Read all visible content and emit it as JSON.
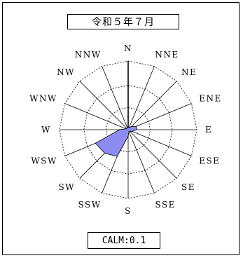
{
  "title": "令和５年７月",
  "calm_text": "CALM:0.1",
  "chart_data": {
    "type": "radar",
    "title": "令和５年７月",
    "directions": [
      "N",
      "NNE",
      "NE",
      "ENE",
      "E",
      "ESE",
      "SE",
      "SSE",
      "S",
      "SSW",
      "SW",
      "WSW",
      "W",
      "WNW",
      "NW",
      "NNW"
    ],
    "direction_labels": [
      "N",
      "NNE",
      "NE",
      "ENE",
      "E",
      "ESE",
      "SE",
      "SSE",
      "S",
      "SSW",
      "SW",
      "WSW",
      "W",
      "WNW",
      "NW",
      "NNW"
    ],
    "values": [
      1,
      1,
      2,
      4,
      4,
      2,
      1,
      1,
      3,
      13,
      15,
      16,
      4,
      1,
      1,
      1
    ],
    "rmax": 31,
    "rings": [
      10,
      20,
      30
    ],
    "calm": 0.1,
    "fill_color": "#8c8cf0",
    "stroke_color": "#000000"
  }
}
